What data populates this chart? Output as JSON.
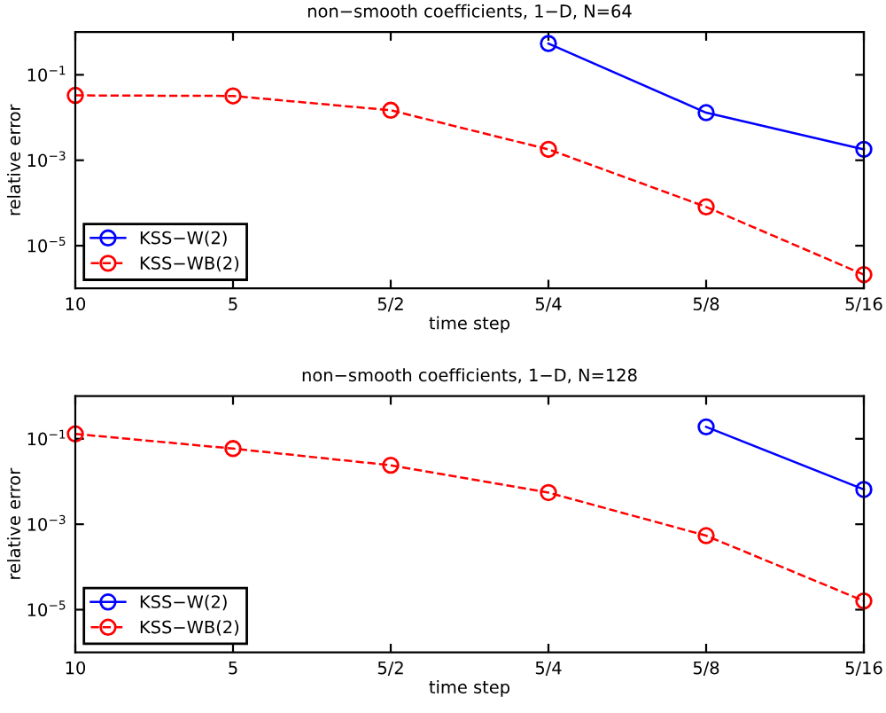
{
  "chart_data": [
    {
      "type": "line",
      "title": "non−smooth coefficients, 1−D, N=64",
      "xlabel": "time step",
      "ylabel": "relative error",
      "categories": [
        "10",
        "5",
        "5/2",
        "5/4",
        "5/8",
        "5/16"
      ],
      "log": "y",
      "ylim": [
        1e-06,
        1
      ],
      "yticks": [
        {
          "value": 1e-05,
          "label": "10$^{−5}$"
        },
        {
          "value": 0.001,
          "label": "10$^{−3}$"
        },
        {
          "value": 0.1,
          "label": "10$^{−1}$"
        }
      ],
      "legend": "bottom left",
      "marker": "circle",
      "grid": false,
      "series": [
        {
          "name": "KSS−W(2)",
          "color": "#0000ff",
          "line_style": "solid",
          "values": [
            null,
            null,
            null,
            0.54,
            0.013,
            0.0018
          ]
        },
        {
          "name": "KSS−WB(2)",
          "color": "#ff0000",
          "line_style": "dashed",
          "values": [
            0.033,
            0.032,
            0.0148,
            0.0018,
            8.1e-05,
            2.1e-06
          ]
        }
      ]
    },
    {
      "type": "line",
      "title": "non−smooth coefficients, 1−D, N=128",
      "xlabel": "time step",
      "ylabel": "relative error",
      "categories": [
        "10",
        "5",
        "5/2",
        "5/4",
        "5/8",
        "5/16"
      ],
      "log": "y",
      "ylim": [
        1e-06,
        1
      ],
      "yticks": [
        {
          "value": 1e-05,
          "label": "10$^{−5}$"
        },
        {
          "value": 0.001,
          "label": "10$^{−3}$"
        },
        {
          "value": 0.1,
          "label": "10$^{−1}$"
        }
      ],
      "legend": "bottom left",
      "marker": "circle",
      "grid": false,
      "series": [
        {
          "name": "KSS−W(2)",
          "color": "#0000ff",
          "line_style": "solid",
          "values": [
            null,
            null,
            null,
            null,
            0.19,
            0.0065
          ]
        },
        {
          "name": "KSS−WB(2)",
          "color": "#ff0000",
          "line_style": "dashed",
          "values": [
            0.13,
            0.059,
            0.024,
            0.0055,
            0.00054,
            1.6e-05
          ]
        }
      ]
    }
  ]
}
